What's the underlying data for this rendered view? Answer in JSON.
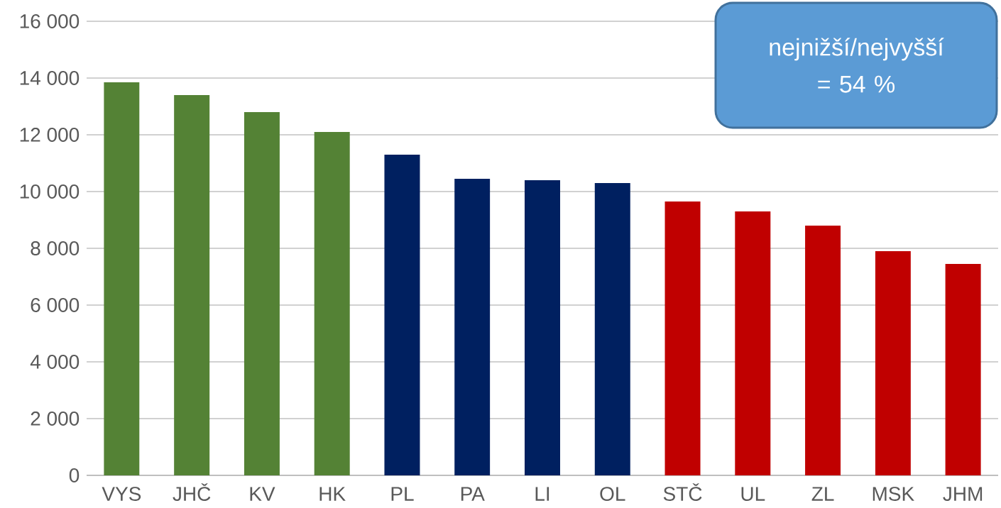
{
  "chart_data": {
    "type": "bar",
    "categories": [
      "VYS",
      "JHČ",
      "KV",
      "HK",
      "PL",
      "PA",
      "LI",
      "OL",
      "STČ",
      "UL",
      "ZL",
      "MSK",
      "JHM"
    ],
    "values": [
      13850,
      13400,
      12800,
      12100,
      11300,
      10450,
      10400,
      10300,
      9650,
      9300,
      8800,
      7900,
      7450
    ],
    "colors": [
      "#548235",
      "#548235",
      "#548235",
      "#548235",
      "#002060",
      "#002060",
      "#002060",
      "#002060",
      "#c00000",
      "#c00000",
      "#c00000",
      "#c00000",
      "#c00000"
    ],
    "ylim": [
      0,
      16000
    ],
    "yticks": [
      {
        "value": 0,
        "label": "0"
      },
      {
        "value": 2000,
        "label": "2 000"
      },
      {
        "value": 4000,
        "label": "4 000"
      },
      {
        "value": 6000,
        "label": "6 000"
      },
      {
        "value": 8000,
        "label": "8 000"
      },
      {
        "value": 10000,
        "label": "10 000"
      },
      {
        "value": 12000,
        "label": "12 000"
      },
      {
        "value": 14000,
        "label": "14 000"
      },
      {
        "value": 16000,
        "label": "16 000"
      }
    ],
    "grid": "y",
    "annotations": [
      "nejnižší/nejvyšší = 54 %"
    ]
  }
}
